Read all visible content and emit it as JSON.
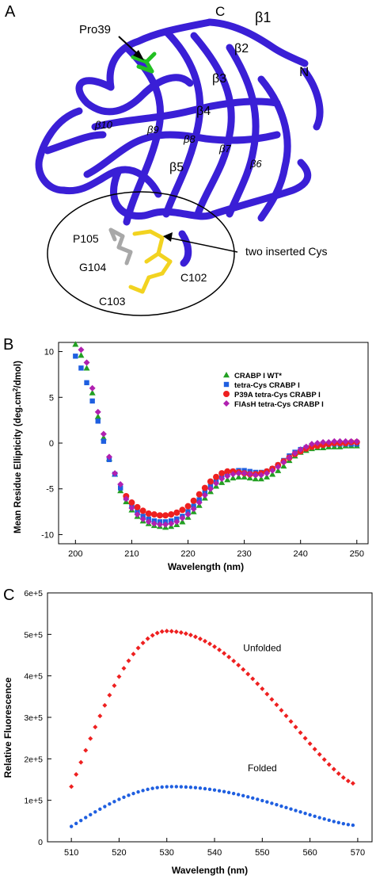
{
  "panel_a": {
    "letter": "A",
    "labels": {
      "pro39": "Pro39",
      "c_term": "C",
      "n_term": "N",
      "b1": "β1",
      "b2": "β2",
      "b3": "β3",
      "b4": "β4",
      "b5": "β5",
      "b6": "β6",
      "b7": "β7",
      "b8": "β8",
      "b9": "β9",
      "b10": "β10",
      "p105": "P105",
      "g104": "G104",
      "c102": "C102",
      "c103": "C103",
      "inserted": "two inserted Cys"
    },
    "colors": {
      "ribbon": "#3a1fd6",
      "pro": "#22c022",
      "cys": "#f2d320",
      "gray": "#a8a8a8"
    }
  },
  "panel_b": {
    "letter": "B",
    "chart_data": {
      "type": "scatter",
      "xlabel": "Wavelength (nm)",
      "ylabel": "Mean Residue Ellipticity (deg.cm2/dmol)",
      "xlim": [
        197,
        252
      ],
      "ylim": [
        -11,
        11
      ],
      "xticks": [
        200,
        210,
        220,
        230,
        240,
        250
      ],
      "yticks": [
        10,
        5,
        0,
        -5,
        -10
      ],
      "legend_position": "center-right",
      "series": [
        {
          "name": "CRABP I WT*",
          "color": "#22a022",
          "marker": "triangle",
          "x": [
            200,
            201,
            202,
            203,
            204,
            205,
            206,
            207,
            208,
            209,
            210,
            211,
            212,
            213,
            214,
            215,
            216,
            217,
            218,
            219,
            220,
            221,
            222,
            223,
            224,
            225,
            226,
            227,
            228,
            229,
            230,
            231,
            232,
            233,
            234,
            235,
            236,
            237,
            238,
            239,
            240,
            241,
            242,
            243,
            244,
            245,
            246,
            247,
            248,
            249,
            250
          ],
          "y": [
            10.8,
            9.6,
            8.2,
            5.5,
            2.9,
            0.6,
            -1.7,
            -3.4,
            -5.2,
            -6.4,
            -7.3,
            -8.0,
            -8.5,
            -8.8,
            -9.0,
            -9.1,
            -9.2,
            -9.1,
            -8.9,
            -8.6,
            -8.1,
            -7.5,
            -6.8,
            -6.0,
            -5.3,
            -4.7,
            -4.3,
            -4.0,
            -3.8,
            -3.7,
            -3.7,
            -3.8,
            -3.9,
            -3.9,
            -3.7,
            -3.4,
            -3.0,
            -2.5,
            -1.9,
            -1.4,
            -1.0,
            -0.8,
            -0.6,
            -0.5,
            -0.5,
            -0.4,
            -0.4,
            -0.4,
            -0.3,
            -0.3,
            -0.3
          ]
        },
        {
          "name": "tetra-Cys CRABP I",
          "color": "#1f5fe0",
          "marker": "square",
          "x": [
            200,
            201,
            202,
            203,
            204,
            205,
            206,
            207,
            208,
            209,
            210,
            211,
            212,
            213,
            214,
            215,
            216,
            217,
            218,
            219,
            220,
            221,
            222,
            223,
            224,
            225,
            226,
            227,
            228,
            229,
            230,
            231,
            232,
            233,
            234,
            235,
            236,
            237,
            238,
            239,
            240,
            241,
            242,
            243,
            244,
            245,
            246,
            247,
            248,
            249,
            250
          ],
          "y": [
            9.5,
            8.2,
            6.6,
            4.6,
            2.4,
            0.2,
            -1.8,
            -3.4,
            -4.9,
            -6.0,
            -6.9,
            -7.5,
            -8.0,
            -8.3,
            -8.5,
            -8.6,
            -8.6,
            -8.5,
            -8.3,
            -8.0,
            -7.5,
            -6.9,
            -6.2,
            -5.4,
            -4.7,
            -4.1,
            -3.6,
            -3.3,
            -3.1,
            -3.0,
            -3.0,
            -3.1,
            -3.2,
            -3.2,
            -3.1,
            -2.8,
            -2.4,
            -1.9,
            -1.4,
            -1.0,
            -0.7,
            -0.5,
            -0.3,
            -0.2,
            -0.2,
            -0.1,
            -0.1,
            -0.1,
            -0.1,
            -0.1,
            -0.1
          ]
        },
        {
          "name": "P39A tetra-Cys CRABP I",
          "color": "#ee2020",
          "marker": "circle",
          "x": [
            209,
            210,
            211,
            212,
            213,
            214,
            215,
            216,
            217,
            218,
            219,
            220,
            221,
            222,
            223,
            224,
            225,
            226,
            227,
            228,
            229,
            230,
            231,
            232,
            233,
            234,
            235,
            236,
            237,
            238,
            239,
            240,
            241,
            242,
            243,
            244,
            245,
            246,
            247,
            248,
            249,
            250
          ],
          "y": [
            -5.8,
            -6.5,
            -7.0,
            -7.4,
            -7.7,
            -7.8,
            -7.9,
            -7.9,
            -7.8,
            -7.6,
            -7.3,
            -6.9,
            -6.3,
            -5.6,
            -4.9,
            -4.2,
            -3.7,
            -3.3,
            -3.1,
            -3.1,
            -3.2,
            -3.3,
            -3.4,
            -3.4,
            -3.3,
            -3.1,
            -2.8,
            -2.4,
            -2.0,
            -1.6,
            -1.2,
            -0.9,
            -0.6,
            -0.4,
            -0.3,
            -0.2,
            -0.1,
            0.0,
            0.0,
            0.0,
            0.1,
            0.1
          ]
        },
        {
          "name": "FlAsH tetra-Cys CRABP I",
          "color": "#b020b0",
          "marker": "diamond",
          "x": [
            201,
            202,
            203,
            204,
            205,
            206,
            207,
            208,
            209,
            210,
            211,
            212,
            213,
            214,
            215,
            216,
            217,
            218,
            219,
            220,
            221,
            222,
            223,
            224,
            225,
            226,
            227,
            228,
            229,
            230,
            231,
            232,
            233,
            234,
            235,
            236,
            237,
            238,
            239,
            240,
            241,
            242,
            243,
            244,
            245,
            246,
            247,
            248,
            249,
            250
          ],
          "y": [
            10.2,
            8.8,
            6.0,
            3.4,
            1.0,
            -1.5,
            -3.3,
            -4.5,
            -6.1,
            -7.1,
            -7.8,
            -8.3,
            -8.6,
            -8.8,
            -8.9,
            -8.9,
            -8.8,
            -8.6,
            -8.2,
            -7.8,
            -7.2,
            -6.5,
            -5.7,
            -5.0,
            -4.4,
            -3.9,
            -3.6,
            -3.4,
            -3.3,
            -3.3,
            -3.4,
            -3.5,
            -3.5,
            -3.3,
            -3.0,
            -2.6,
            -2.1,
            -1.6,
            -1.1,
            -0.7,
            -0.4,
            -0.1,
            0.0,
            0.1,
            0.1,
            0.2,
            0.2,
            0.2,
            0.2,
            0.2
          ]
        }
      ]
    }
  },
  "panel_c": {
    "letter": "C",
    "chart_data": {
      "type": "scatter",
      "xlabel": "Wavelength (nm)",
      "ylabel": "Relative Fluorescence",
      "xlim": [
        505,
        573
      ],
      "ylim": [
        0,
        600000
      ],
      "xticks": [
        510,
        520,
        530,
        540,
        550,
        560,
        570
      ],
      "yticks": [
        0,
        100000,
        200000,
        300000,
        400000,
        500000,
        600000
      ],
      "ytick_labels": [
        "0",
        "1e+5",
        "2e+5",
        "3e+5",
        "4e+5",
        "5e+5",
        "6e+5"
      ],
      "annotations": [
        {
          "text": "Unfolded",
          "x": 550,
          "y": 460000
        },
        {
          "text": "Folded",
          "x": 550,
          "y": 170000
        }
      ],
      "series": [
        {
          "color": "#ee2020",
          "marker": "diamond",
          "x_start": 510,
          "x_end": 569,
          "peak_x": 530,
          "peak_y": 508000,
          "start_y": 133000,
          "end_y": 141000
        },
        {
          "color": "#1f5fe0",
          "marker": "dot",
          "x_start": 510,
          "x_end": 569,
          "peak_x": 531,
          "peak_y": 133000,
          "start_y": 37000,
          "end_y": 40000
        }
      ]
    }
  }
}
